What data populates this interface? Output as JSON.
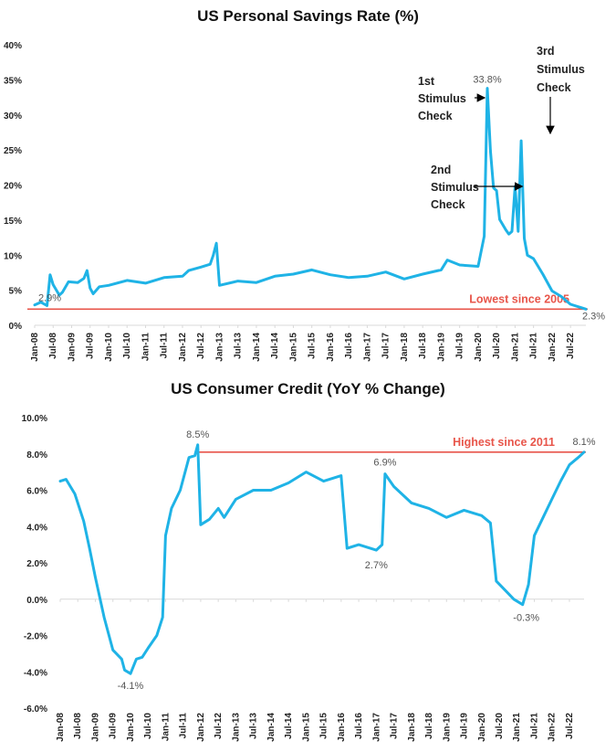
{
  "colors": {
    "series": "#1fb3e6",
    "reference": "#e8554a",
    "reference_text": "#e8554a"
  },
  "chart_data": [
    {
      "type": "line",
      "title": "US Personal Savings Rate (%)",
      "xlabel": "",
      "ylabel": "",
      "ylim": [
        0,
        40
      ],
      "y_ticks": [
        "0%",
        "5%",
        "10%",
        "15%",
        "20%",
        "25%",
        "30%",
        "35%",
        "40%"
      ],
      "x_tick_labels": [
        "Jan-08",
        "Jul-08",
        "Jan-09",
        "Jul-09",
        "Jan-10",
        "Jul-10",
        "Jan-11",
        "Jul-11",
        "Jan-12",
        "Jul-12",
        "Jan-13",
        "Jul-13",
        "Jan-14",
        "Jul-14",
        "Jan-15",
        "Jul-15",
        "Jan-16",
        "Jul-16",
        "Jan-17",
        "Jul-17",
        "Jan-18",
        "Jul-18",
        "Jan-19",
        "Jul-19",
        "Jan-20",
        "Jul-20",
        "Jan-21",
        "Jul-21",
        "Jan-22",
        "Jul-22"
      ],
      "x_start": "Jan-08",
      "x_end": "Dec-22",
      "grid": false,
      "series": [
        {
          "points": [
            [
              "Jan-08",
              2.9
            ],
            [
              "Mar-08",
              3.3
            ],
            [
              "May-08",
              2.8
            ],
            [
              "Jun-08",
              7.2
            ],
            [
              "Jul-08",
              5.8
            ],
            [
              "Sep-08",
              4.3
            ],
            [
              "Oct-08",
              4.7
            ],
            [
              "Dec-08",
              6.2
            ],
            [
              "Mar-09",
              6.1
            ],
            [
              "May-09",
              6.7
            ],
            [
              "Jun-09",
              7.8
            ],
            [
              "Jul-09",
              5.3
            ],
            [
              "Aug-09",
              4.5
            ],
            [
              "Oct-09",
              5.5
            ],
            [
              "Jan-10",
              5.7
            ],
            [
              "Jul-10",
              6.4
            ],
            [
              "Jan-11",
              6.0
            ],
            [
              "Jul-11",
              6.8
            ],
            [
              "Jan-12",
              7.0
            ],
            [
              "Mar-12",
              7.8
            ],
            [
              "Jul-12",
              8.3
            ],
            [
              "Oct-12",
              8.7
            ],
            [
              "Nov-12",
              10.0
            ],
            [
              "Dec-12",
              11.7
            ],
            [
              "Jan-13",
              5.7
            ],
            [
              "Jul-13",
              6.3
            ],
            [
              "Jan-14",
              6.1
            ],
            [
              "Jul-14",
              7.0
            ],
            [
              "Jan-15",
              7.3
            ],
            [
              "Jul-15",
              7.9
            ],
            [
              "Jan-16",
              7.2
            ],
            [
              "Jul-16",
              6.8
            ],
            [
              "Jan-17",
              7.0
            ],
            [
              "Jul-17",
              7.6
            ],
            [
              "Jan-18",
              6.6
            ],
            [
              "Jul-18",
              7.3
            ],
            [
              "Jan-19",
              7.9
            ],
            [
              "Mar-19",
              9.3
            ],
            [
              "Jul-19",
              8.6
            ],
            [
              "Jan-20",
              8.4
            ],
            [
              "Mar-20",
              12.7
            ],
            [
              "Apr-20",
              33.8
            ],
            [
              "May-20",
              24.9
            ],
            [
              "Jun-20",
              19.6
            ],
            [
              "Jul-20",
              19.2
            ],
            [
              "Aug-20",
              15.1
            ],
            [
              "Oct-20",
              13.6
            ],
            [
              "Nov-20",
              13.0
            ],
            [
              "Dec-20",
              13.4
            ],
            [
              "Jan-21",
              19.8
            ],
            [
              "Feb-21",
              13.4
            ],
            [
              "Mar-21",
              26.3
            ],
            [
              "Apr-21",
              12.4
            ],
            [
              "May-21",
              10.0
            ],
            [
              "Jul-21",
              9.5
            ],
            [
              "Oct-21",
              7.3
            ],
            [
              "Jan-22",
              4.9
            ],
            [
              "Apr-22",
              4.1
            ],
            [
              "Jul-22",
              3.0
            ],
            [
              "Dec-22",
              2.3
            ]
          ]
        }
      ],
      "reference_line": {
        "value": 2.3,
        "label": "Lowest since 2005"
      },
      "data_labels": [
        {
          "x": "Jan-08",
          "y": 2.9,
          "text": "2.9%"
        },
        {
          "x": "Apr-20",
          "y": 33.8,
          "text": "33.8%"
        },
        {
          "x": "Dec-22",
          "y": 2.3,
          "text": "2.3%"
        }
      ],
      "annotations": [
        {
          "lines": [
            "1st",
            "Stimulus",
            "Check"
          ],
          "x": "Apr-20",
          "y": 33.8
        },
        {
          "lines": [
            "2nd",
            "Stimulus",
            "Check"
          ],
          "x": "Jan-21",
          "y": 19.8
        },
        {
          "lines": [
            "3rd",
            "Stimulus",
            "Check"
          ],
          "x": "Mar-21",
          "y": 26.3
        }
      ]
    },
    {
      "type": "line",
      "title": "US Consumer Credit (YoY % Change)",
      "xlabel": "",
      "ylabel": "",
      "ylim": [
        -6,
        10
      ],
      "y_ticks": [
        "-6.0%",
        "-4.0%",
        "-2.0%",
        "0.0%",
        "2.0%",
        "4.0%",
        "6.0%",
        "8.0%",
        "10.0%"
      ],
      "x_tick_labels": [
        "Jan-08",
        "Jul-08",
        "Jan-09",
        "Jul-09",
        "Jan-10",
        "Jul-10",
        "Jan-11",
        "Jul-11",
        "Jan-12",
        "Jul-12",
        "Jan-13",
        "Jul-13",
        "Jan-14",
        "Jul-14",
        "Jan-15",
        "Jul-15",
        "Jan-16",
        "Jul-16",
        "Jan-17",
        "Jul-17",
        "Jan-18",
        "Jul-18",
        "Jan-19",
        "Jul-19",
        "Jan-20",
        "Jul-20",
        "Jan-21",
        "Jul-21",
        "Jan-22",
        "Jul-22"
      ],
      "x_start": "Jan-08",
      "x_end": "Dec-22",
      "grid": false,
      "series": [
        {
          "points": [
            [
              "Jan-08",
              6.5
            ],
            [
              "Mar-08",
              6.6
            ],
            [
              "Jun-08",
              5.8
            ],
            [
              "Sep-08",
              4.3
            ],
            [
              "Nov-08",
              2.8
            ],
            [
              "Jan-09",
              1.2
            ],
            [
              "Apr-09",
              -1.0
            ],
            [
              "Jul-09",
              -2.8
            ],
            [
              "Oct-09",
              -3.3
            ],
            [
              "Nov-09",
              -3.9
            ],
            [
              "Jan-10",
              -4.1
            ],
            [
              "Mar-10",
              -3.3
            ],
            [
              "May-10",
              -3.2
            ],
            [
              "Jul-10",
              -2.7
            ],
            [
              "Oct-10",
              -2.0
            ],
            [
              "Dec-10",
              -1.0
            ],
            [
              "Jan-11",
              3.5
            ],
            [
              "Mar-11",
              5.0
            ],
            [
              "Jun-11",
              6.0
            ],
            [
              "Sep-11",
              7.8
            ],
            [
              "Nov-11",
              7.9
            ],
            [
              "Dec-11",
              8.5
            ],
            [
              "Jan-12",
              4.1
            ],
            [
              "Apr-12",
              4.4
            ],
            [
              "Jul-12",
              5.0
            ],
            [
              "Sep-12",
              4.5
            ],
            [
              "Jan-13",
              5.5
            ],
            [
              "Jul-13",
              6.0
            ],
            [
              "Jan-14",
              6.0
            ],
            [
              "Jul-14",
              6.4
            ],
            [
              "Jan-15",
              7.0
            ],
            [
              "Jul-15",
              6.5
            ],
            [
              "Jan-16",
              6.8
            ],
            [
              "Mar-16",
              2.8
            ],
            [
              "Jul-16",
              3.0
            ],
            [
              "Jan-17",
              2.7
            ],
            [
              "Mar-17",
              3.0
            ],
            [
              "Apr-17",
              6.9
            ],
            [
              "Jul-17",
              6.2
            ],
            [
              "Jan-18",
              5.3
            ],
            [
              "Jul-18",
              5.0
            ],
            [
              "Jan-19",
              4.5
            ],
            [
              "Jul-19",
              4.9
            ],
            [
              "Jan-20",
              4.6
            ],
            [
              "Apr-20",
              4.2
            ],
            [
              "Jun-20",
              1.0
            ],
            [
              "Sep-20",
              0.5
            ],
            [
              "Dec-20",
              0.0
            ],
            [
              "Mar-21",
              -0.3
            ],
            [
              "May-21",
              0.8
            ],
            [
              "Jul-21",
              3.5
            ],
            [
              "Oct-21",
              4.5
            ],
            [
              "Jan-22",
              5.5
            ],
            [
              "Apr-22",
              6.5
            ],
            [
              "Jul-22",
              7.4
            ],
            [
              "Oct-22",
              7.8
            ],
            [
              "Dec-22",
              8.1
            ]
          ]
        }
      ],
      "reference_line": {
        "value": 8.1,
        "label": "Highest since 2011"
      },
      "data_labels": [
        {
          "x": "Dec-11",
          "y": 8.5,
          "text": "8.5%"
        },
        {
          "x": "Dec-22",
          "y": 8.1,
          "text": "8.1%"
        },
        {
          "x": "Apr-17",
          "y": 6.9,
          "text": "6.9%"
        },
        {
          "x": "Jan-17",
          "y": 2.7,
          "text": "2.7%"
        },
        {
          "x": "Jan-10",
          "y": -4.1,
          "text": "-4.1%"
        },
        {
          "x": "Mar-21",
          "y": -0.3,
          "text": "-0.3%"
        }
      ]
    }
  ]
}
